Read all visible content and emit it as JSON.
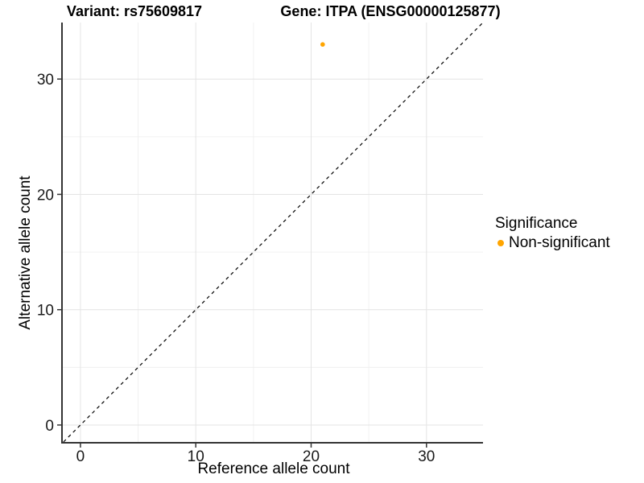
{
  "chart_data": {
    "type": "scatter",
    "title_variant": "Variant: rs75609817",
    "title_gene": "Gene: ITPA (ENSG00000125877)",
    "xlabel": "Reference allele count",
    "ylabel": "Alternative allele count",
    "xlim": [
      -1.53,
      34.9
    ],
    "ylim": [
      -1.47,
      34.9
    ],
    "x_ticks": [
      0,
      10,
      20,
      30
    ],
    "y_ticks": [
      0,
      10,
      20,
      30
    ],
    "minor_gridlines": [
      5,
      15,
      25
    ],
    "grid": "on",
    "identity_line": {
      "style": "dashed",
      "color": "#000000",
      "from": -1.47,
      "to": 34.9
    },
    "points": [
      {
        "x": 21,
        "y": 33,
        "significance": "Non-significant",
        "color": "#FFA500"
      }
    ],
    "legend": {
      "position": "right",
      "title": "Significance",
      "items": [
        {
          "label": "Non-significant",
          "color": "#FFA500"
        }
      ]
    },
    "colors": {
      "point_nonsignificant": "#FFA500",
      "major_grid": "#e4e4e4",
      "minor_grid": "#f0f0f0",
      "axis_line": "#343434",
      "tick_text": "#1a1a1a"
    }
  }
}
